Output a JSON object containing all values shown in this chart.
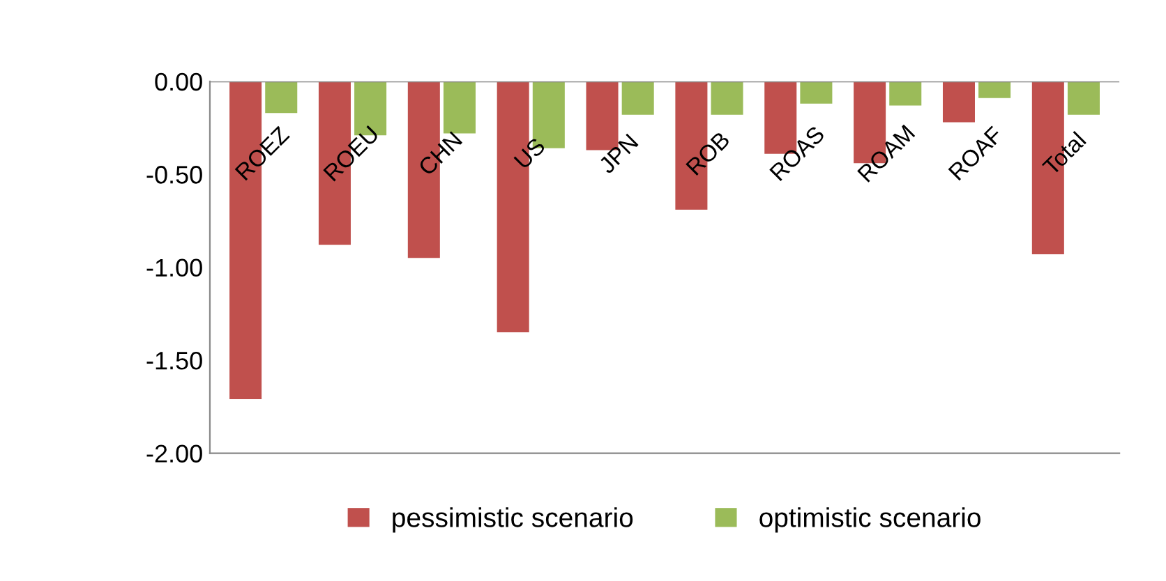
{
  "chart_data": {
    "type": "bar",
    "categories": [
      "ROEZ",
      "ROEU",
      "CHN",
      "US",
      "JPN",
      "ROB",
      "ROAS",
      "ROAM",
      "ROAF",
      "Total"
    ],
    "series": [
      {
        "name": "pessimistic scenario",
        "color": "#c0504d",
        "values": [
          -1.71,
          -0.88,
          -0.95,
          -1.35,
          -0.37,
          -0.69,
          -0.39,
          -0.44,
          -0.22,
          -0.93
        ]
      },
      {
        "name": "optimistic scenario",
        "color": "#9bbb59",
        "values": [
          -0.17,
          -0.29,
          -0.28,
          -0.36,
          -0.18,
          -0.18,
          -0.12,
          -0.13,
          -0.09,
          -0.18
        ]
      }
    ],
    "ylim": [
      -2.0,
      0.0
    ],
    "yticks": [
      {
        "value": -2.0,
        "label": "-2.00"
      },
      {
        "value": -1.5,
        "label": "-1.50"
      },
      {
        "value": -1.0,
        "label": "-1.00"
      },
      {
        "value": -0.5,
        "label": "-0.50"
      },
      {
        "value": 0.0,
        "label": "0.00"
      }
    ],
    "grid": false,
    "legend": "bottom"
  }
}
